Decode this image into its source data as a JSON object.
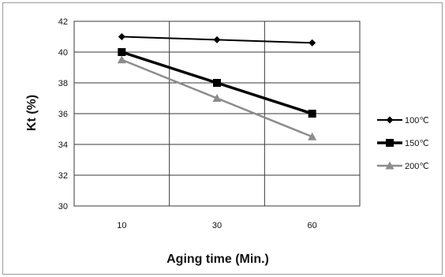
{
  "chart_data": {
    "type": "line",
    "title": "",
    "xlabel": "Aging time (Min.)",
    "ylabel": "Kt (%)",
    "categories": [
      "10",
      "30",
      "60"
    ],
    "ylim": [
      30,
      42
    ],
    "yticks": [
      "30",
      "32",
      "34",
      "36",
      "38",
      "40",
      "42"
    ],
    "grid": true,
    "legend_position": "right",
    "series": [
      {
        "name": "100℃",
        "values": [
          41.0,
          40.8,
          40.6
        ],
        "color": "#000000",
        "marker": "diamond",
        "line_width": "thin"
      },
      {
        "name": "150℃",
        "values": [
          40.0,
          38.0,
          36.0
        ],
        "color": "#000000",
        "marker": "square",
        "line_width": "thick"
      },
      {
        "name": "200℃",
        "values": [
          39.5,
          37.0,
          34.5
        ],
        "color": "#8c8c8c",
        "marker": "triangle",
        "line_width": "medium"
      }
    ]
  }
}
